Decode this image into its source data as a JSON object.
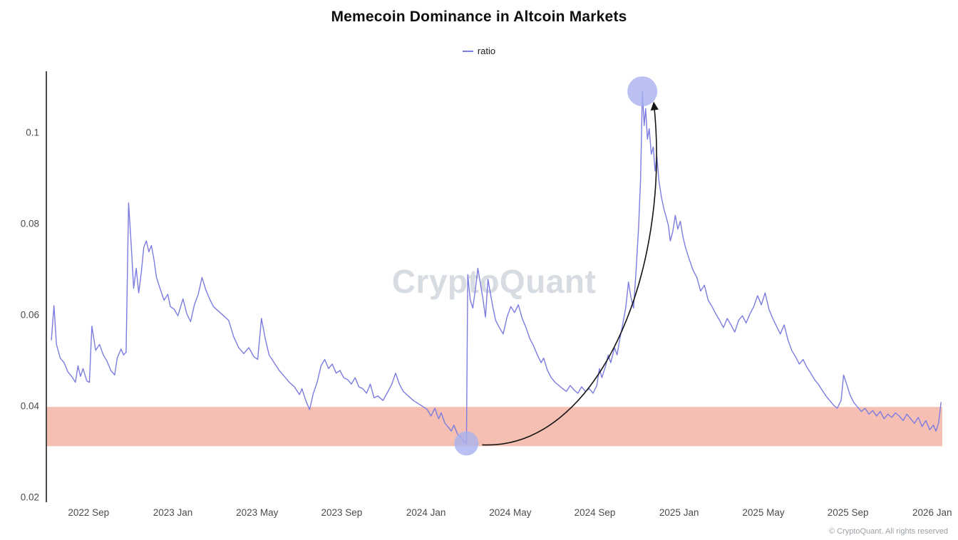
{
  "title": "Memecoin Dominance in Altcoin Markets",
  "legend": {
    "label": "ratio"
  },
  "watermark": "CryptoQuant",
  "footer": {
    "copyright": "© CryptoQuant. All rights reserved"
  },
  "colors": {
    "line": "#7b7ce0",
    "band": "#f2b0a0",
    "highlight": "#a9b1ef",
    "arrow": "#141414",
    "axis": "#1f1f1f",
    "tick": "#4b4b4b",
    "watermark": "#d7dbe2"
  },
  "chart_data": {
    "type": "line",
    "title": "Memecoin Dominance in Altcoin Markets",
    "xlabel": "",
    "ylabel": "",
    "legend_position": "top-center",
    "grid": false,
    "xlim": [
      2022.5,
      2026.04
    ],
    "ylim": [
      0.0189,
      0.1134
    ],
    "y_ticks": [
      {
        "value": 0.02,
        "label": "0.02"
      },
      {
        "value": 0.04,
        "label": "0.04"
      },
      {
        "value": 0.06,
        "label": "0.06"
      },
      {
        "value": 0.08,
        "label": "0.08"
      },
      {
        "value": 0.1,
        "label": "0.1"
      }
    ],
    "x_ticks": [
      {
        "value": 2022.667,
        "label": "2022 Sep"
      },
      {
        "value": 2023.0,
        "label": "2023 Jan"
      },
      {
        "value": 2023.333,
        "label": "2023 May"
      },
      {
        "value": 2023.667,
        "label": "2023 Sep"
      },
      {
        "value": 2024.0,
        "label": "2024 Jan"
      },
      {
        "value": 2024.333,
        "label": "2024 May"
      },
      {
        "value": 2024.667,
        "label": "2024 Sep"
      },
      {
        "value": 2025.0,
        "label": "2025 Jan"
      },
      {
        "value": 2025.333,
        "label": "2025 May"
      },
      {
        "value": 2025.667,
        "label": "2025 Sep"
      },
      {
        "value": 2026.0,
        "label": "2026 Jan"
      }
    ],
    "band": {
      "from": 0.0312,
      "to": 0.0398
    },
    "annotations": {
      "low_circle": {
        "x": 2024.16,
        "y": 0.0318,
        "radius": 17
      },
      "peak_circle": {
        "x": 2024.855,
        "y": 0.109,
        "radius": 21
      },
      "arrow": {
        "from": "low_circle",
        "to": "peak_circle"
      }
    },
    "series": [
      {
        "name": "ratio",
        "points": [
          [
            2022.52,
            0.0545
          ],
          [
            2022.53,
            0.062
          ],
          [
            2022.54,
            0.0535
          ],
          [
            2022.555,
            0.0505
          ],
          [
            2022.57,
            0.0495
          ],
          [
            2022.585,
            0.0475
          ],
          [
            2022.6,
            0.0465
          ],
          [
            2022.615,
            0.0452
          ],
          [
            2022.625,
            0.0488
          ],
          [
            2022.635,
            0.0465
          ],
          [
            2022.645,
            0.0482
          ],
          [
            2022.66,
            0.0455
          ],
          [
            2022.67,
            0.0452
          ],
          [
            2022.68,
            0.0575
          ],
          [
            2022.695,
            0.0522
          ],
          [
            2022.71,
            0.0535
          ],
          [
            2022.725,
            0.0512
          ],
          [
            2022.74,
            0.0498
          ],
          [
            2022.755,
            0.0478
          ],
          [
            2022.77,
            0.0468
          ],
          [
            2022.78,
            0.0505
          ],
          [
            2022.795,
            0.0525
          ],
          [
            2022.805,
            0.0512
          ],
          [
            2022.815,
            0.0518
          ],
          [
            2022.825,
            0.0845
          ],
          [
            2022.835,
            0.0755
          ],
          [
            2022.845,
            0.0658
          ],
          [
            2022.855,
            0.0702
          ],
          [
            2022.865,
            0.0648
          ],
          [
            2022.875,
            0.0692
          ],
          [
            2022.885,
            0.0748
          ],
          [
            2022.895,
            0.0762
          ],
          [
            2022.905,
            0.0738
          ],
          [
            2022.915,
            0.0752
          ],
          [
            2022.925,
            0.0722
          ],
          [
            2022.935,
            0.0682
          ],
          [
            2022.945,
            0.0665
          ],
          [
            2022.955,
            0.0648
          ],
          [
            2022.965,
            0.0632
          ],
          [
            2022.98,
            0.0645
          ],
          [
            2022.99,
            0.0618
          ],
          [
            2023.005,
            0.0612
          ],
          [
            2023.02,
            0.0598
          ],
          [
            2023.04,
            0.0635
          ],
          [
            2023.055,
            0.0602
          ],
          [
            2023.07,
            0.0585
          ],
          [
            2023.085,
            0.0622
          ],
          [
            2023.1,
            0.0645
          ],
          [
            2023.115,
            0.0682
          ],
          [
            2023.13,
            0.0655
          ],
          [
            2023.145,
            0.0635
          ],
          [
            2023.16,
            0.0618
          ],
          [
            2023.18,
            0.0608
          ],
          [
            2023.2,
            0.0598
          ],
          [
            2023.22,
            0.0588
          ],
          [
            2023.24,
            0.0552
          ],
          [
            2023.26,
            0.0528
          ],
          [
            2023.28,
            0.0515
          ],
          [
            2023.3,
            0.0528
          ],
          [
            2023.32,
            0.0508
          ],
          [
            2023.335,
            0.0502
          ],
          [
            2023.35,
            0.0592
          ],
          [
            2023.365,
            0.0548
          ],
          [
            2023.38,
            0.0512
          ],
          [
            2023.4,
            0.0495
          ],
          [
            2023.42,
            0.0478
          ],
          [
            2023.44,
            0.0465
          ],
          [
            2023.46,
            0.0452
          ],
          [
            2023.48,
            0.0442
          ],
          [
            2023.5,
            0.0425
          ],
          [
            2023.51,
            0.0438
          ],
          [
            2023.525,
            0.0412
          ],
          [
            2023.54,
            0.0392
          ],
          [
            2023.555,
            0.0428
          ],
          [
            2023.57,
            0.0452
          ],
          [
            2023.585,
            0.0488
          ],
          [
            2023.6,
            0.0502
          ],
          [
            2023.615,
            0.0482
          ],
          [
            2023.63,
            0.0492
          ],
          [
            2023.645,
            0.0472
          ],
          [
            2023.66,
            0.0478
          ],
          [
            2023.675,
            0.0462
          ],
          [
            2023.69,
            0.0458
          ],
          [
            2023.705,
            0.0448
          ],
          [
            2023.72,
            0.0462
          ],
          [
            2023.735,
            0.0442
          ],
          [
            2023.75,
            0.0438
          ],
          [
            2023.765,
            0.0428
          ],
          [
            2023.78,
            0.0448
          ],
          [
            2023.795,
            0.0418
          ],
          [
            2023.81,
            0.0422
          ],
          [
            2023.83,
            0.0412
          ],
          [
            2023.85,
            0.0432
          ],
          [
            2023.865,
            0.0448
          ],
          [
            2023.88,
            0.0472
          ],
          [
            2023.895,
            0.0448
          ],
          [
            2023.91,
            0.0432
          ],
          [
            2023.93,
            0.0422
          ],
          [
            2023.95,
            0.0412
          ],
          [
            2023.97,
            0.0405
          ],
          [
            2023.99,
            0.0398
          ],
          [
            2024.005,
            0.0392
          ],
          [
            2024.02,
            0.0378
          ],
          [
            2024.035,
            0.0395
          ],
          [
            2024.05,
            0.0372
          ],
          [
            2024.06,
            0.0385
          ],
          [
            2024.075,
            0.0362
          ],
          [
            2024.09,
            0.0352
          ],
          [
            2024.1,
            0.0345
          ],
          [
            2024.11,
            0.0358
          ],
          [
            2024.125,
            0.0338
          ],
          [
            2024.14,
            0.033
          ],
          [
            2024.15,
            0.0322
          ],
          [
            2024.16,
            0.0318
          ],
          [
            2024.165,
            0.0688
          ],
          [
            2024.175,
            0.0632
          ],
          [
            2024.185,
            0.0615
          ],
          [
            2024.195,
            0.0655
          ],
          [
            2024.205,
            0.0702
          ],
          [
            2024.215,
            0.0668
          ],
          [
            2024.225,
            0.0635
          ],
          [
            2024.235,
            0.0595
          ],
          [
            2024.245,
            0.0678
          ],
          [
            2024.255,
            0.0645
          ],
          [
            2024.265,
            0.0615
          ],
          [
            2024.275,
            0.0588
          ],
          [
            2024.29,
            0.0572
          ],
          [
            2024.305,
            0.0558
          ],
          [
            2024.32,
            0.0595
          ],
          [
            2024.335,
            0.0618
          ],
          [
            2024.35,
            0.0605
          ],
          [
            2024.365,
            0.0622
          ],
          [
            2024.38,
            0.0592
          ],
          [
            2024.395,
            0.0572
          ],
          [
            2024.41,
            0.0548
          ],
          [
            2024.425,
            0.0532
          ],
          [
            2024.44,
            0.0512
          ],
          [
            2024.455,
            0.0495
          ],
          [
            2024.465,
            0.0505
          ],
          [
            2024.48,
            0.0478
          ],
          [
            2024.495,
            0.0462
          ],
          [
            2024.51,
            0.0452
          ],
          [
            2024.525,
            0.0445
          ],
          [
            2024.54,
            0.0438
          ],
          [
            2024.555,
            0.0432
          ],
          [
            2024.57,
            0.0445
          ],
          [
            2024.585,
            0.0435
          ],
          [
            2024.6,
            0.0428
          ],
          [
            2024.615,
            0.0442
          ],
          [
            2024.63,
            0.0432
          ],
          [
            2024.645,
            0.0438
          ],
          [
            2024.66,
            0.0428
          ],
          [
            2024.675,
            0.0445
          ],
          [
            2024.685,
            0.0482
          ],
          [
            2024.695,
            0.0462
          ],
          [
            2024.71,
            0.0488
          ],
          [
            2024.72,
            0.0512
          ],
          [
            2024.73,
            0.0495
          ],
          [
            2024.745,
            0.0528
          ],
          [
            2024.755,
            0.0512
          ],
          [
            2024.765,
            0.0545
          ],
          [
            2024.775,
            0.0572
          ],
          [
            2024.79,
            0.0618
          ],
          [
            2024.8,
            0.0672
          ],
          [
            2024.81,
            0.0638
          ],
          [
            2024.82,
            0.0615
          ],
          [
            2024.83,
            0.0695
          ],
          [
            2024.84,
            0.0792
          ],
          [
            2024.848,
            0.0898
          ],
          [
            2024.855,
            0.109
          ],
          [
            2024.862,
            0.1015
          ],
          [
            2024.868,
            0.1052
          ],
          [
            2024.875,
            0.0985
          ],
          [
            2024.882,
            0.1008
          ],
          [
            2024.89,
            0.0952
          ],
          [
            2024.898,
            0.0968
          ],
          [
            2024.905,
            0.0915
          ],
          [
            2024.912,
            0.0948
          ],
          [
            2024.92,
            0.0895
          ],
          [
            2024.93,
            0.0858
          ],
          [
            2024.94,
            0.0832
          ],
          [
            2024.95,
            0.0812
          ],
          [
            2024.958,
            0.0795
          ],
          [
            2024.965,
            0.0762
          ],
          [
            2024.975,
            0.0782
          ],
          [
            2024.985,
            0.0818
          ],
          [
            2024.995,
            0.0788
          ],
          [
            2025.005,
            0.0805
          ],
          [
            2025.015,
            0.0772
          ],
          [
            2025.025,
            0.0748
          ],
          [
            2025.04,
            0.0722
          ],
          [
            2025.055,
            0.0698
          ],
          [
            2025.07,
            0.0682
          ],
          [
            2025.085,
            0.0652
          ],
          [
            2025.1,
            0.0665
          ],
          [
            2025.115,
            0.0632
          ],
          [
            2025.13,
            0.0618
          ],
          [
            2025.145,
            0.0602
          ],
          [
            2025.16,
            0.0588
          ],
          [
            2025.175,
            0.0572
          ],
          [
            2025.19,
            0.0592
          ],
          [
            2025.205,
            0.0578
          ],
          [
            2025.22,
            0.0562
          ],
          [
            2025.235,
            0.0588
          ],
          [
            2025.25,
            0.0598
          ],
          [
            2025.265,
            0.0582
          ],
          [
            2025.28,
            0.0602
          ],
          [
            2025.295,
            0.0618
          ],
          [
            2025.31,
            0.0642
          ],
          [
            2025.325,
            0.0622
          ],
          [
            2025.34,
            0.0648
          ],
          [
            2025.355,
            0.0612
          ],
          [
            2025.37,
            0.0592
          ],
          [
            2025.385,
            0.0575
          ],
          [
            2025.4,
            0.0558
          ],
          [
            2025.415,
            0.0578
          ],
          [
            2025.43,
            0.0545
          ],
          [
            2025.445,
            0.0522
          ],
          [
            2025.46,
            0.0508
          ],
          [
            2025.475,
            0.0492
          ],
          [
            2025.49,
            0.0502
          ],
          [
            2025.505,
            0.0485
          ],
          [
            2025.52,
            0.0472
          ],
          [
            2025.535,
            0.0458
          ],
          [
            2025.55,
            0.0448
          ],
          [
            2025.565,
            0.0435
          ],
          [
            2025.58,
            0.0422
          ],
          [
            2025.595,
            0.0412
          ],
          [
            2025.61,
            0.0402
          ],
          [
            2025.625,
            0.0395
          ],
          [
            2025.64,
            0.0412
          ],
          [
            2025.65,
            0.0468
          ],
          [
            2025.662,
            0.0448
          ],
          [
            2025.675,
            0.0425
          ],
          [
            2025.69,
            0.0408
          ],
          [
            2025.705,
            0.0398
          ],
          [
            2025.72,
            0.0388
          ],
          [
            2025.735,
            0.0395
          ],
          [
            2025.75,
            0.0382
          ],
          [
            2025.765,
            0.039
          ],
          [
            2025.78,
            0.0378
          ],
          [
            2025.795,
            0.0388
          ],
          [
            2025.81,
            0.0372
          ],
          [
            2025.825,
            0.0382
          ],
          [
            2025.84,
            0.0375
          ],
          [
            2025.855,
            0.0385
          ],
          [
            2025.87,
            0.0378
          ],
          [
            2025.885,
            0.0368
          ],
          [
            2025.9,
            0.0382
          ],
          [
            2025.915,
            0.0372
          ],
          [
            2025.93,
            0.0362
          ],
          [
            2025.945,
            0.0375
          ],
          [
            2025.96,
            0.0355
          ],
          [
            2025.975,
            0.0368
          ],
          [
            2025.99,
            0.0348
          ],
          [
            2026.005,
            0.0358
          ],
          [
            2026.015,
            0.0345
          ],
          [
            2026.025,
            0.0362
          ],
          [
            2026.035,
            0.0408
          ]
        ]
      }
    ]
  }
}
